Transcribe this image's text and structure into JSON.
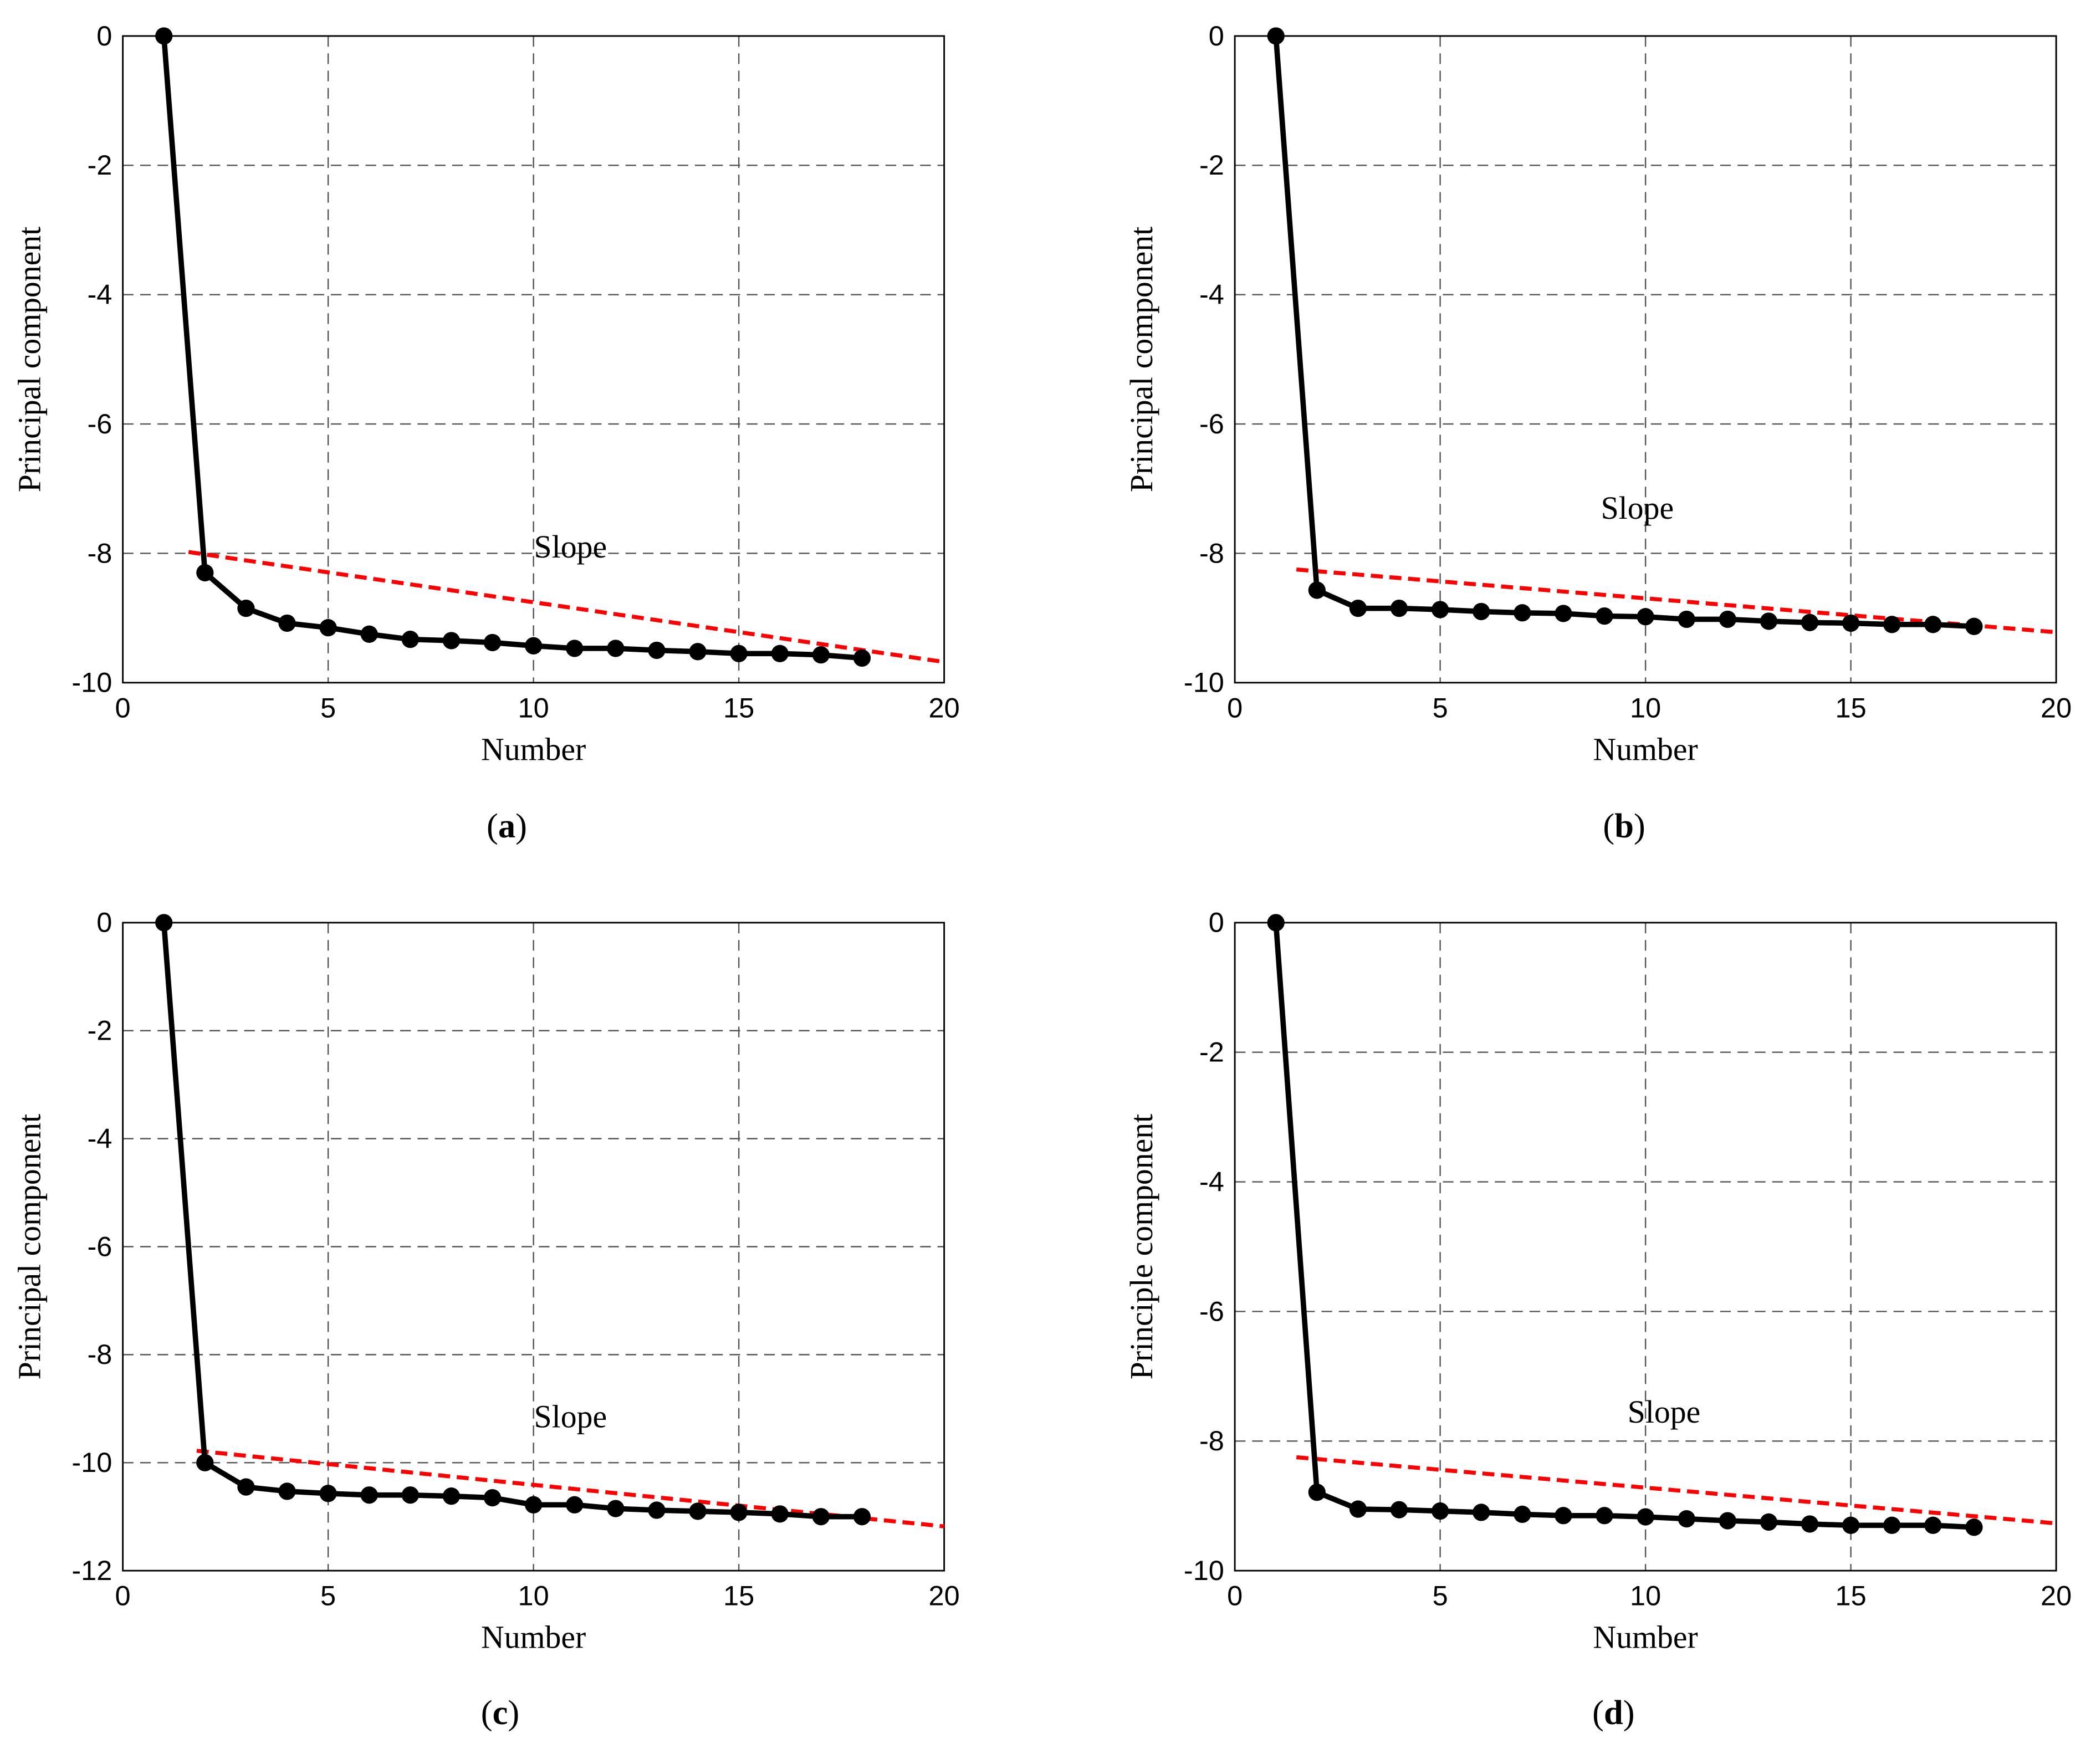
{
  "colors": {
    "series": "#000000",
    "slope_line": "#ff0000",
    "grid": "#555555"
  },
  "chart_data": [
    {
      "type": "line",
      "panel_label": "a",
      "xlabel": "Number",
      "ylabel": "Principal component",
      "xlim": [
        0,
        20
      ],
      "ylim": [
        -10,
        0
      ],
      "xticks": [
        0,
        5,
        10,
        15,
        20
      ],
      "yticks": [
        0,
        -2,
        -4,
        -6,
        -8,
        -10
      ],
      "grid": true,
      "grid_style": "dashed",
      "x": [
        1,
        2,
        3,
        4,
        5,
        6,
        7,
        8,
        9,
        10,
        11,
        12,
        13,
        14,
        15,
        16,
        17,
        18
      ],
      "y": [
        0,
        -8.3,
        -8.85,
        -9.08,
        -9.15,
        -9.25,
        -9.33,
        -9.35,
        -9.38,
        -9.43,
        -9.47,
        -9.47,
        -9.5,
        -9.52,
        -9.55,
        -9.55,
        -9.57,
        -9.62
      ],
      "slope_line": {
        "x": [
          1.6,
          20
        ],
        "y": [
          -7.98,
          -9.68
        ],
        "style": "dashed red"
      },
      "annotation": {
        "text": "Slope",
        "x": 10.9,
        "y": -7.9
      }
    },
    {
      "type": "line",
      "panel_label": "b",
      "xlabel": "Number",
      "ylabel": "Principal component",
      "xlim": [
        0,
        20
      ],
      "ylim": [
        -10,
        0
      ],
      "xticks": [
        0,
        5,
        10,
        15,
        20
      ],
      "yticks": [
        0,
        -2,
        -4,
        -6,
        -8,
        -10
      ],
      "grid": true,
      "grid_style": "dashed",
      "x": [
        1,
        2,
        3,
        4,
        5,
        6,
        7,
        8,
        9,
        10,
        11,
        12,
        13,
        14,
        15,
        16,
        17,
        18
      ],
      "y": [
        0,
        -8.57,
        -8.85,
        -8.85,
        -8.87,
        -8.9,
        -8.92,
        -8.93,
        -8.97,
        -8.98,
        -9.02,
        -9.02,
        -9.05,
        -9.07,
        -9.08,
        -9.1,
        -9.1,
        -9.13
      ],
      "slope_line": {
        "x": [
          1.5,
          20
        ],
        "y": [
          -8.25,
          -9.22
        ],
        "style": "dashed red"
      },
      "annotation": {
        "text": "Slope",
        "x": 9.8,
        "y": -7.3
      }
    },
    {
      "type": "line",
      "panel_label": "c",
      "xlabel": "Number",
      "ylabel": "Principal component",
      "xlim": [
        0,
        20
      ],
      "ylim": [
        -12,
        0
      ],
      "xticks": [
        0,
        5,
        10,
        15,
        20
      ],
      "yticks": [
        0,
        -2,
        -4,
        -6,
        -8,
        -10,
        -12
      ],
      "grid": true,
      "grid_style": "dashed",
      "x": [
        1,
        2,
        3,
        4,
        5,
        6,
        7,
        8,
        9,
        10,
        11,
        12,
        13,
        14,
        15,
        16,
        17,
        18
      ],
      "y": [
        0,
        -10.0,
        -10.45,
        -10.53,
        -10.57,
        -10.6,
        -10.6,
        -10.62,
        -10.65,
        -10.78,
        -10.78,
        -10.85,
        -10.88,
        -10.9,
        -10.92,
        -10.95,
        -11.0,
        -11.0
      ],
      "slope_line": {
        "x": [
          1.8,
          20
        ],
        "y": [
          -9.78,
          -11.18
        ],
        "style": "dashed red"
      },
      "annotation": {
        "text": "Slope",
        "x": 10.9,
        "y": -9.15
      }
    },
    {
      "type": "line",
      "panel_label": "d",
      "xlabel": "Number",
      "ylabel": "Principle component",
      "xlim": [
        0,
        20
      ],
      "ylim": [
        -10,
        0
      ],
      "xticks": [
        0,
        5,
        10,
        15,
        20
      ],
      "yticks": [
        0,
        -2,
        -4,
        -6,
        -8,
        -10
      ],
      "grid": true,
      "grid_style": "dashed",
      "x": [
        1,
        2,
        3,
        4,
        5,
        6,
        7,
        8,
        9,
        10,
        11,
        12,
        13,
        14,
        15,
        16,
        17,
        18
      ],
      "y": [
        0,
        -8.79,
        -9.05,
        -9.06,
        -9.08,
        -9.1,
        -9.13,
        -9.15,
        -9.15,
        -9.17,
        -9.2,
        -9.23,
        -9.25,
        -9.28,
        -9.3,
        -9.3,
        -9.3,
        -9.33
      ],
      "slope_line": {
        "x": [
          1.5,
          20
        ],
        "y": [
          -8.25,
          -9.27
        ],
        "style": "dashed red"
      },
      "annotation": {
        "text": "Slope",
        "x": 10.45,
        "y": -7.55
      }
    }
  ]
}
